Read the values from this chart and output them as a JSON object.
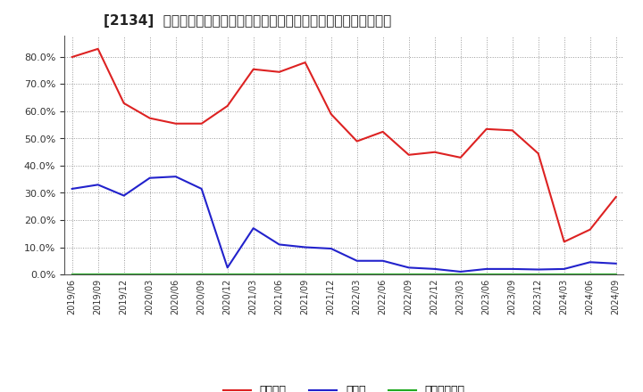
{
  "title": "[2134]  自己資本、のれん、繰延税金資産の総資産に対する比率の推移",
  "x_labels": [
    "2019/06",
    "2019/09",
    "2019/12",
    "2020/03",
    "2020/06",
    "2020/09",
    "2020/12",
    "2021/03",
    "2021/06",
    "2021/09",
    "2021/12",
    "2022/03",
    "2022/06",
    "2022/09",
    "2022/12",
    "2023/03",
    "2023/06",
    "2023/09",
    "2023/12",
    "2024/03",
    "2024/06",
    "2024/09"
  ],
  "equity": [
    0.8,
    0.83,
    0.63,
    0.575,
    0.555,
    0.555,
    0.62,
    0.755,
    0.745,
    0.78,
    0.59,
    0.49,
    0.525,
    0.44,
    0.45,
    0.43,
    0.535,
    0.53,
    0.445,
    0.12,
    0.165,
    0.285
  ],
  "goodwill": [
    0.315,
    0.33,
    0.29,
    0.355,
    0.36,
    0.315,
    0.025,
    0.17,
    0.11,
    0.1,
    0.095,
    0.05,
    0.05,
    0.025,
    0.02,
    0.01,
    0.02,
    0.02,
    0.018,
    0.02,
    0.045,
    0.04
  ],
  "deferred_tax": [
    0.0,
    0.0,
    0.0,
    0.0,
    0.0,
    0.0,
    0.0,
    0.0,
    0.0,
    0.0,
    0.0,
    0.0,
    0.0,
    0.0,
    0.0,
    0.0,
    0.0,
    0.0,
    0.0,
    0.0,
    0.0,
    0.0
  ],
  "equity_color": "#dd2222",
  "goodwill_color": "#2222cc",
  "deferred_tax_color": "#22aa22",
  "equity_label": "自己資本",
  "goodwill_label": "のれん",
  "deferred_tax_label": "繰延税金資産",
  "ylim": [
    0.0,
    0.88
  ],
  "yticks": [
    0.0,
    0.1,
    0.2,
    0.3,
    0.4,
    0.5,
    0.6,
    0.7,
    0.8
  ],
  "background_color": "#ffffff",
  "grid_color": "#999999",
  "title_fontsize": 11
}
